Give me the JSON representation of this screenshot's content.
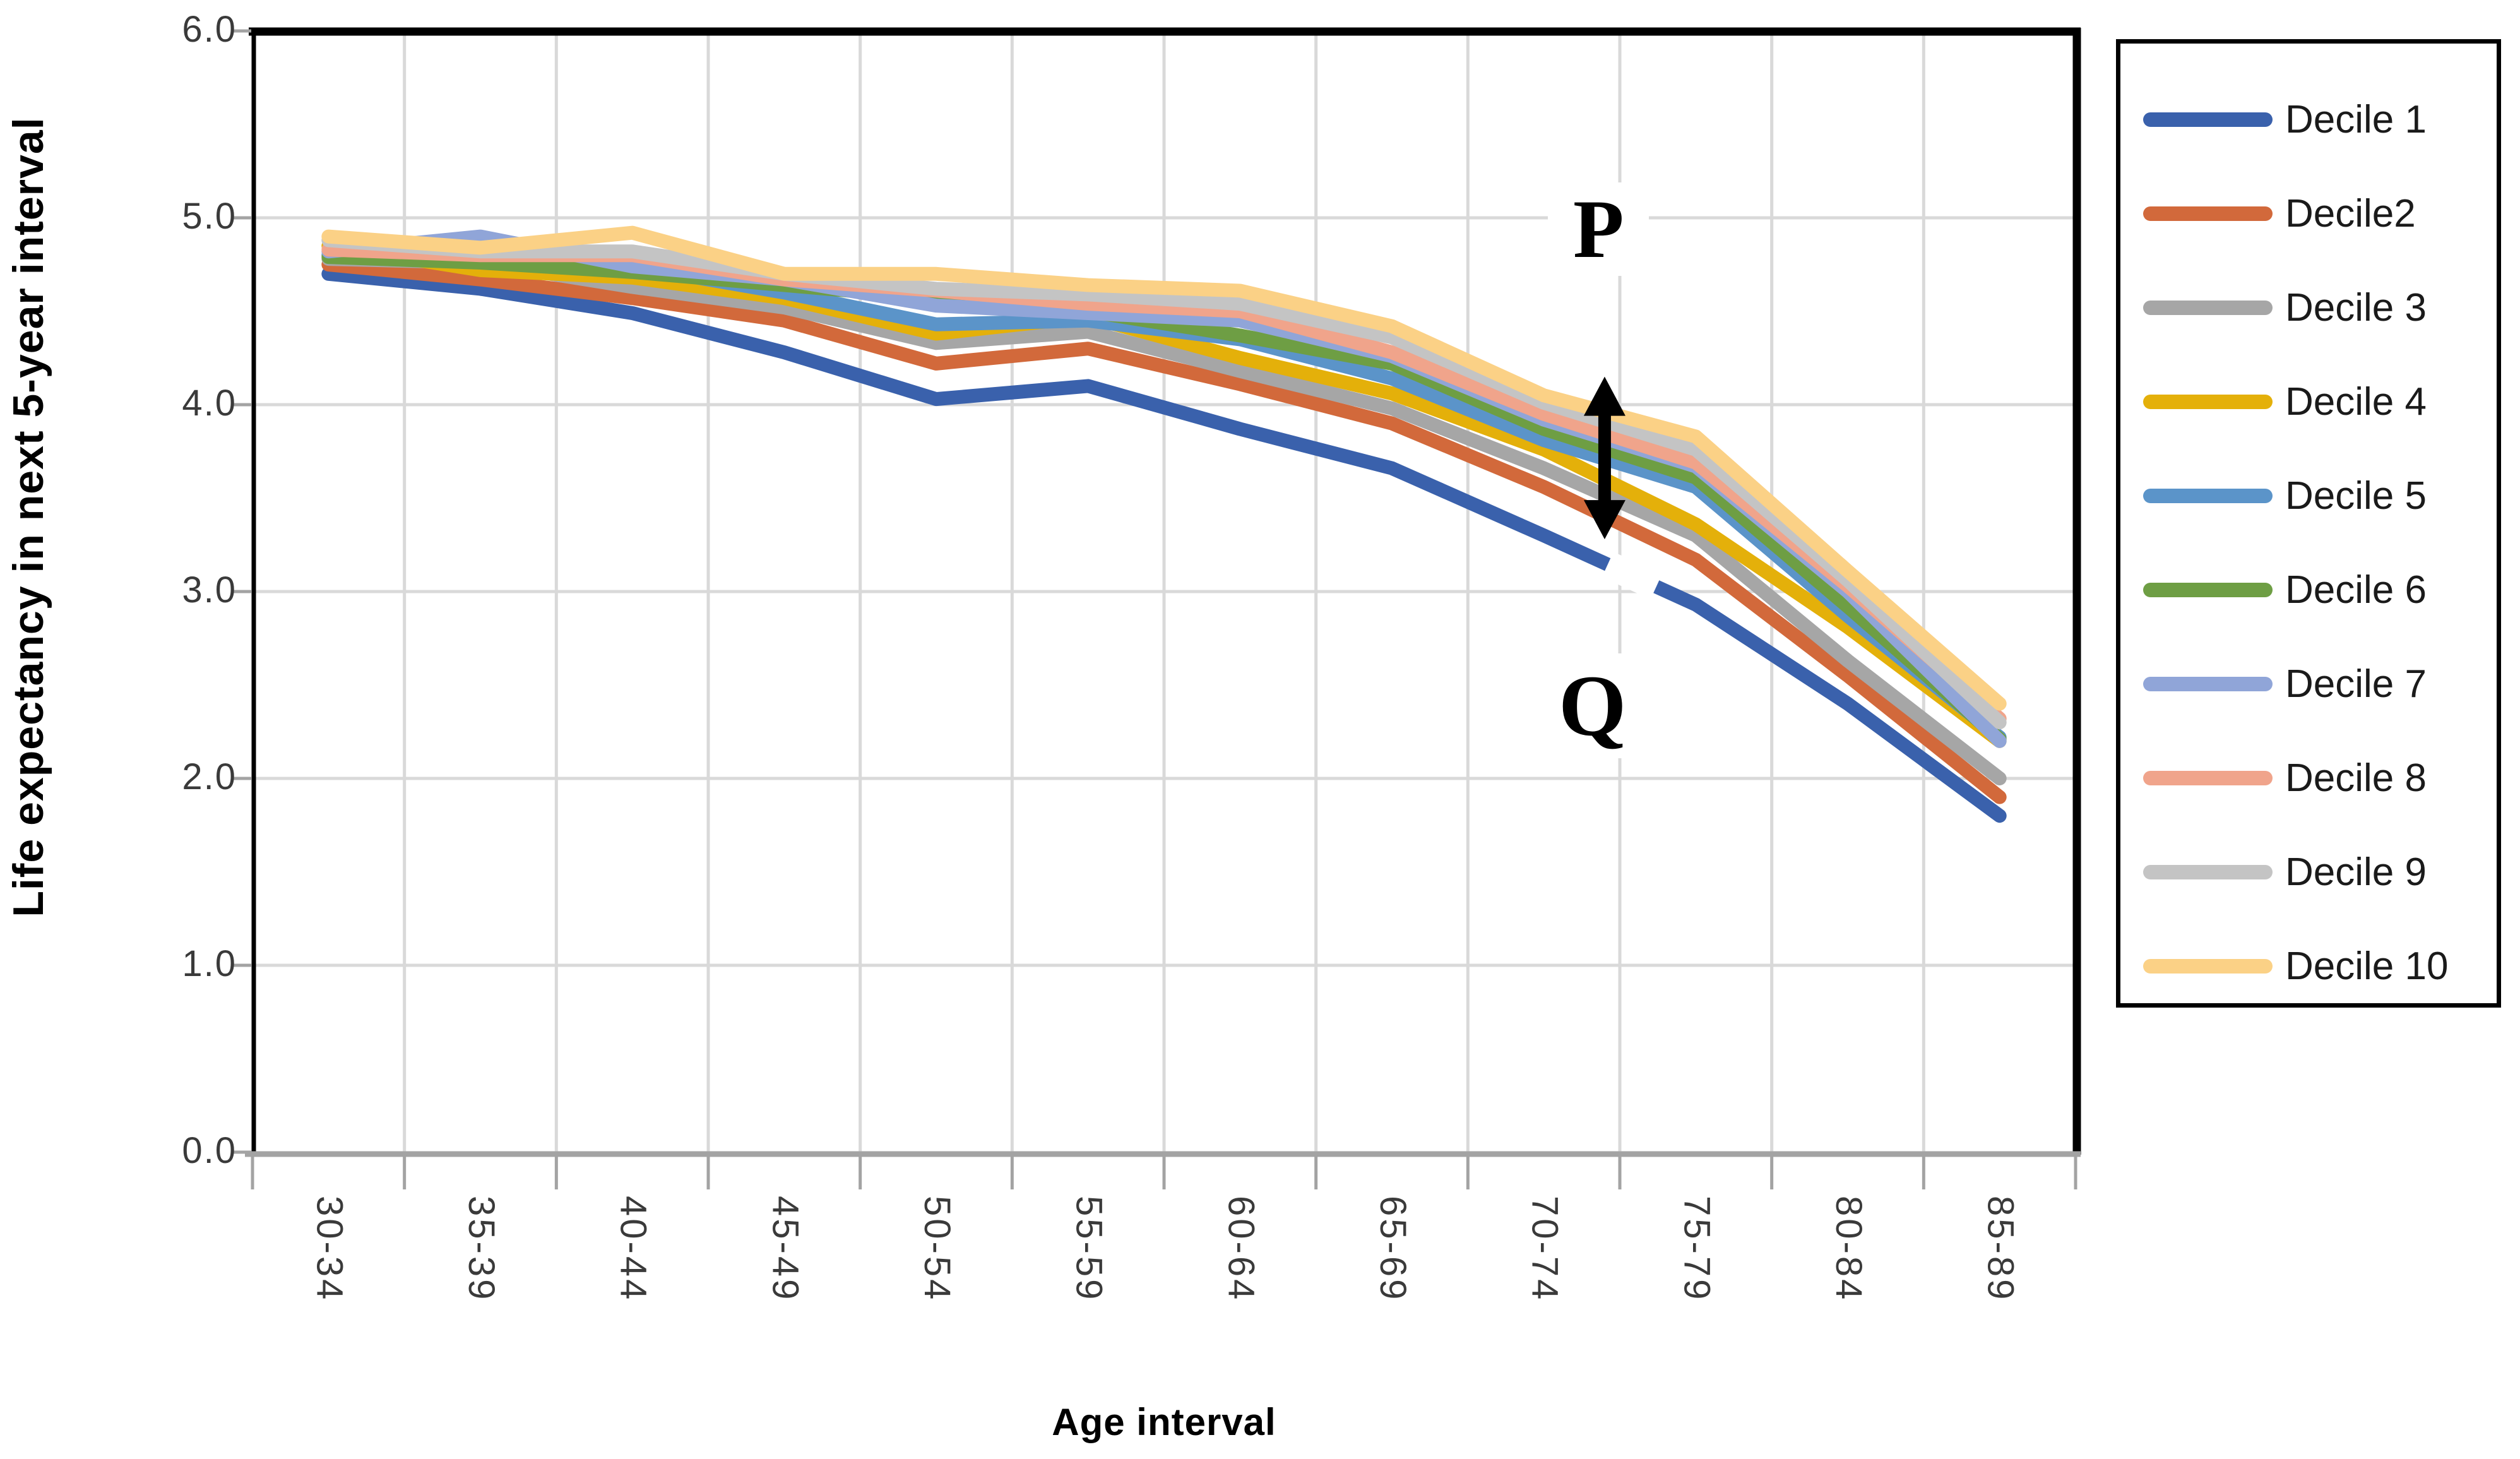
{
  "chart_data": {
    "type": "line",
    "title": "",
    "xlabel": "Age interval",
    "ylabel": "Life expectancy in next 5-year interval",
    "categories": [
      "30-34",
      "35-39",
      "40-44",
      "45-49",
      "50-54",
      "55-59",
      "60-64",
      "65-69",
      "70-74",
      "75-79",
      "80-84",
      "85-89"
    ],
    "ylim": [
      0,
      6
    ],
    "ytick_step": 1.0,
    "ytick_labels": [
      "0.0",
      "1.0",
      "2.0",
      "3.0",
      "4.0",
      "5.0",
      "6.0"
    ],
    "grid": true,
    "legend_position": "right-box",
    "series": [
      {
        "name": "Decile 1",
        "color": "#3A61AC",
        "values": [
          4.7,
          4.62,
          4.49,
          4.28,
          4.03,
          4.1,
          3.87,
          3.66,
          3.3,
          2.93,
          2.4,
          1.8
        ]
      },
      {
        "name": "Decile2",
        "color": "#D2693B",
        "values": [
          4.75,
          4.67,
          4.57,
          4.45,
          4.22,
          4.3,
          4.11,
          3.9,
          3.56,
          3.17,
          2.55,
          1.9
        ]
      },
      {
        "name": "Decile 3",
        "color": "#A6A6A6",
        "values": [
          4.78,
          4.76,
          4.63,
          4.52,
          4.33,
          4.39,
          4.18,
          3.98,
          3.66,
          3.3,
          2.63,
          2.0
        ]
      },
      {
        "name": "Decile 4",
        "color": "#E4B00A",
        "values": [
          4.85,
          4.72,
          4.68,
          4.57,
          4.38,
          4.47,
          4.25,
          4.06,
          3.76,
          3.36,
          2.81,
          2.2
        ]
      },
      {
        "name": "Decile 5",
        "color": "#5B94C9",
        "values": [
          4.8,
          4.77,
          4.74,
          4.6,
          4.43,
          4.45,
          4.35,
          4.14,
          3.81,
          3.56,
          2.87,
          2.22
        ]
      },
      {
        "name": "Decile 6",
        "color": "#6E9E44",
        "values": [
          4.79,
          4.76,
          4.71,
          4.64,
          4.57,
          4.5,
          4.37,
          4.22,
          3.87,
          3.61,
          2.92,
          2.21
        ]
      },
      {
        "name": "Decile 7",
        "color": "#90A5D8",
        "values": [
          4.82,
          4.9,
          4.74,
          4.67,
          4.53,
          4.49,
          4.45,
          4.26,
          3.92,
          3.67,
          3.0,
          2.2
        ]
      },
      {
        "name": "Decile 8",
        "color": "#F0A48B",
        "values": [
          4.83,
          4.8,
          4.8,
          4.67,
          4.61,
          4.54,
          4.5,
          4.28,
          3.95,
          3.69,
          3.03,
          2.32
        ]
      },
      {
        "name": "Decile 9",
        "color": "#C4C4C4",
        "values": [
          4.88,
          4.82,
          4.82,
          4.7,
          4.62,
          4.59,
          4.54,
          4.36,
          4.01,
          3.76,
          3.06,
          2.3
        ]
      },
      {
        "name": "Decile 10",
        "color": "#FBD186",
        "values": [
          4.9,
          4.84,
          4.92,
          4.7,
          4.7,
          4.64,
          4.61,
          4.42,
          4.05,
          3.83,
          3.11,
          2.4
        ]
      }
    ],
    "annotations": {
      "p": {
        "text": "P",
        "x": 8.36,
        "y": 4.94
      },
      "q": {
        "text": "Q",
        "x": 8.32,
        "y": 2.39
      },
      "arrow": {
        "x": 8.4,
        "y_bottom": 3.28,
        "y_top": 4.15,
        "style": "vertical-double-headed"
      },
      "line_break": {
        "series": "Decile 1",
        "x_from": 8.42,
        "x_to": 8.74
      }
    }
  },
  "colors": {
    "grid": "#D9D9D9",
    "axis": "#A3A3A3",
    "border": "#000000",
    "tick_text": "#3A3A3A",
    "background": "#FFFFFF"
  }
}
